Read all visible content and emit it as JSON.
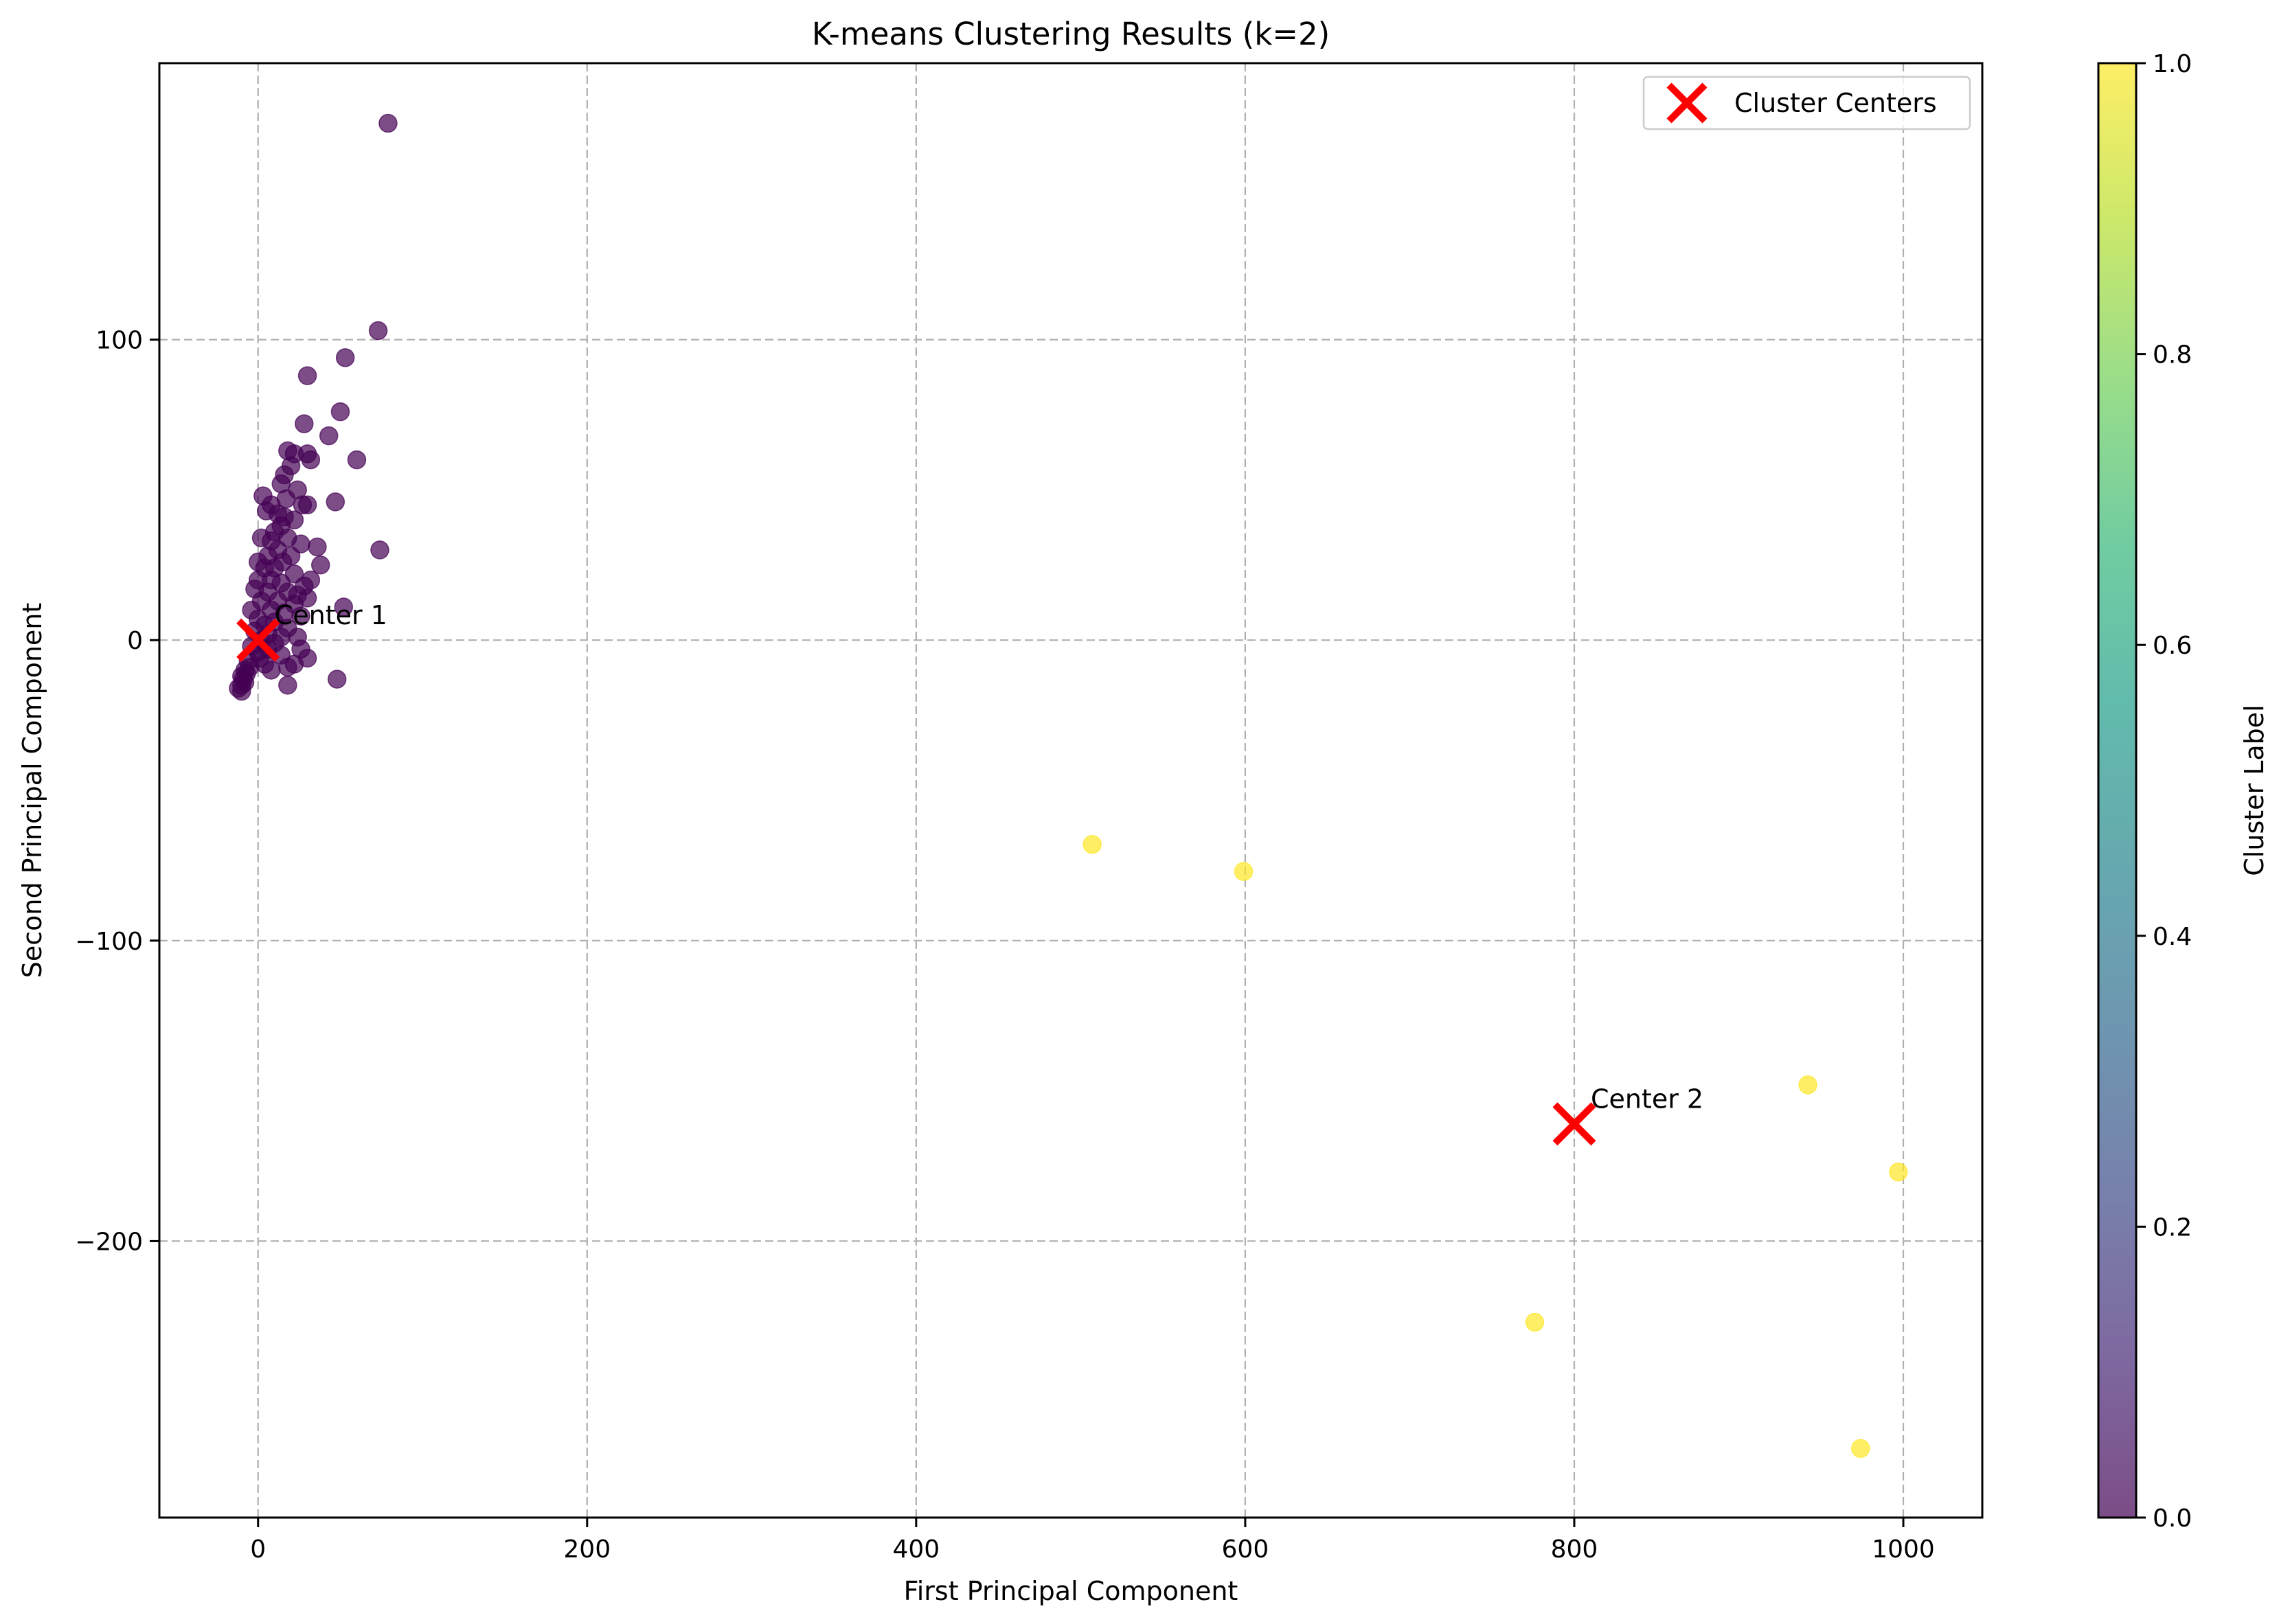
{
  "chart_data": {
    "type": "scatter",
    "title": "K-means Clustering Results (k=2)",
    "xlabel": "First Principal Component",
    "ylabel": "Second Principal Component",
    "xlim": [
      -60,
      1048
    ],
    "ylim": [
      -292,
      192
    ],
    "xticks": [
      0,
      200,
      400,
      600,
      800,
      1000
    ],
    "yticks": [
      -200,
      -100,
      0,
      100
    ],
    "grid": true,
    "legend_position": "top-right",
    "colors": {
      "cluster0": "#440154",
      "cluster1": "#fde725",
      "centers": "#ff0000"
    },
    "point_alpha": 0.7,
    "series": [
      {
        "cluster": 0,
        "points": [
          [
            79,
            172
          ],
          [
            73,
            103
          ],
          [
            53,
            94
          ],
          [
            30,
            88
          ],
          [
            50,
            76
          ],
          [
            28,
            72
          ],
          [
            43,
            68
          ],
          [
            60,
            60
          ],
          [
            18,
            63
          ],
          [
            30,
            62
          ],
          [
            32,
            60
          ],
          [
            22,
            62
          ],
          [
            20,
            58
          ],
          [
            16,
            55
          ],
          [
            14,
            52
          ],
          [
            24,
            50
          ],
          [
            3,
            48
          ],
          [
            17,
            47
          ],
          [
            47,
            46
          ],
          [
            27,
            45
          ],
          [
            30,
            45
          ],
          [
            8,
            45
          ],
          [
            5,
            43
          ],
          [
            12,
            42
          ],
          [
            16,
            41
          ],
          [
            22,
            40
          ],
          [
            14,
            38
          ],
          [
            10,
            36
          ],
          [
            2,
            34
          ],
          [
            18,
            34
          ],
          [
            8,
            33
          ],
          [
            26,
            32
          ],
          [
            36,
            31
          ],
          [
            74,
            30
          ],
          [
            12,
            30
          ],
          [
            6,
            28
          ],
          [
            20,
            28
          ],
          [
            0,
            26
          ],
          [
            15,
            26
          ],
          [
            38,
            25
          ],
          [
            4,
            24
          ],
          [
            10,
            24
          ],
          [
            22,
            22
          ],
          [
            0,
            20
          ],
          [
            8,
            20
          ],
          [
            32,
            20
          ],
          [
            14,
            19
          ],
          [
            28,
            18
          ],
          [
            -2,
            17
          ],
          [
            6,
            16
          ],
          [
            18,
            16
          ],
          [
            24,
            15
          ],
          [
            30,
            14
          ],
          [
            2,
            13
          ],
          [
            12,
            13
          ],
          [
            22,
            12
          ],
          [
            52,
            11
          ],
          [
            -4,
            10
          ],
          [
            8,
            10
          ],
          [
            16,
            9
          ],
          [
            26,
            8
          ],
          [
            0,
            7
          ],
          [
            10,
            6
          ],
          [
            4,
            5
          ],
          [
            18,
            4
          ],
          [
            -2,
            3
          ],
          [
            6,
            2
          ],
          [
            14,
            1
          ],
          [
            24,
            1
          ],
          [
            2,
            0
          ],
          [
            10,
            -1
          ],
          [
            -4,
            -2
          ],
          [
            6,
            -3
          ],
          [
            26,
            -3
          ],
          [
            0,
            -4
          ],
          [
            14,
            -5
          ],
          [
            30,
            -6
          ],
          [
            -6,
            -7
          ],
          [
            4,
            -8
          ],
          [
            22,
            -8
          ],
          [
            -8,
            -10
          ],
          [
            8,
            -10
          ],
          [
            18,
            -9
          ],
          [
            -10,
            -12
          ],
          [
            48,
            -13
          ],
          [
            -8,
            -14
          ],
          [
            18,
            -15
          ],
          [
            -10,
            -15
          ],
          [
            -12,
            -16
          ],
          [
            -10,
            -17
          ],
          [
            -9,
            -13
          ],
          [
            -7,
            -11
          ],
          [
            -5,
            -9
          ],
          [
            1,
            -6
          ]
        ]
      },
      {
        "cluster": 1,
        "points": [
          [
            507,
            -68
          ],
          [
            599,
            -77
          ],
          [
            942,
            -148
          ],
          [
            997,
            -177
          ],
          [
            776,
            -227
          ],
          [
            974,
            -269
          ]
        ]
      }
    ],
    "centers": [
      {
        "label": "Center 1",
        "x": 0,
        "y": 0
      },
      {
        "label": "Center 2",
        "x": 800,
        "y": -161
      }
    ],
    "legend": {
      "label": "Cluster Centers"
    },
    "colorbar": {
      "label": "Cluster Label",
      "ticks": [
        "0.0",
        "0.2",
        "0.4",
        "0.6",
        "0.8",
        "1.0"
      ],
      "range": [
        0,
        1
      ],
      "colormap": "viridis"
    }
  }
}
